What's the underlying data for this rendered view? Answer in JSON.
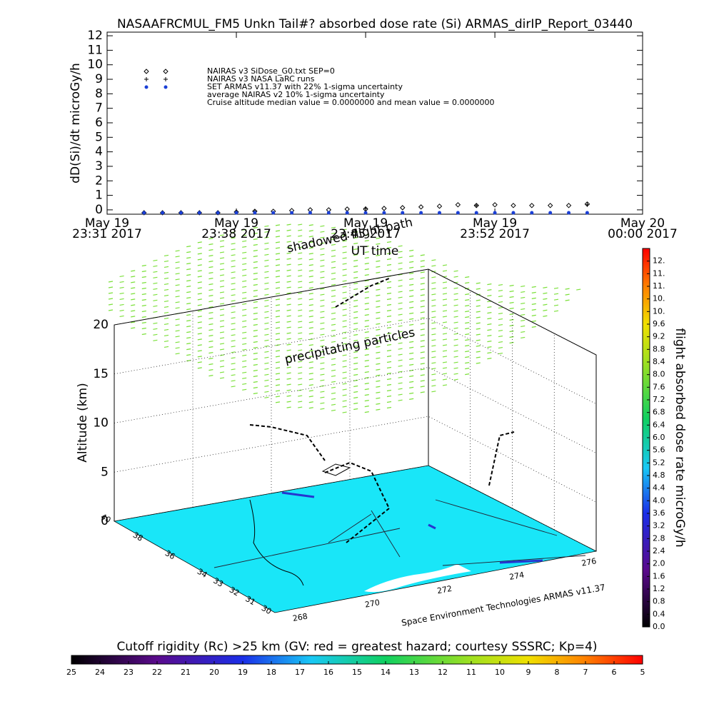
{
  "chart_data": [
    {
      "type": "timeseries",
      "title": "NASAAFRCMUL_FM5 Unkn Tail#? absorbed dose rate (Si) ARMAS_dirIP_Report_03440",
      "ylabel": "dD(Si)/dt microGy/h",
      "xlabel": "UT time",
      "xlim": [
        "2017-05-19 23:31",
        "2017-05-20 00:00"
      ],
      "xticks": [
        {
          "value": "2017-05-19 23:31",
          "label": [
            "May 19",
            "23:31 2017"
          ]
        },
        {
          "value": "2017-05-19 23:38",
          "label": [
            "May 19",
            "23:38 2017"
          ]
        },
        {
          "value": "2017-05-19 23:45",
          "label": [
            "May 19",
            "23:45 2017"
          ]
        },
        {
          "value": "2017-05-19 23:52",
          "label": [
            "May 19",
            "23:52 2017"
          ]
        },
        {
          "value": "2017-05-20 00:00",
          "label": [
            "May 20",
            "00:00 2017"
          ]
        }
      ],
      "ylim": [
        -0.3,
        12.25
      ],
      "yticks": [
        0,
        1,
        2,
        3,
        4,
        5,
        6,
        7,
        8,
        9,
        10,
        11,
        12
      ],
      "series": [
        {
          "name": "NAIRAS v3 SiDose_G0.txt SEP=0",
          "color": "#000000",
          "marker": "diamond",
          "x": [
            "2017-05-19 23:33",
            "2017-05-19 23:34",
            "2017-05-19 23:35",
            "2017-05-19 23:36",
            "2017-05-19 23:37",
            "2017-05-19 23:38",
            "2017-05-19 23:39",
            "2017-05-19 23:40",
            "2017-05-19 23:41",
            "2017-05-19 23:42",
            "2017-05-19 23:43",
            "2017-05-19 23:44",
            "2017-05-19 23:45",
            "2017-05-19 23:46",
            "2017-05-19 23:47",
            "2017-05-19 23:48",
            "2017-05-19 23:49",
            "2017-05-19 23:50",
            "2017-05-19 23:51",
            "2017-05-19 23:52",
            "2017-05-19 23:53",
            "2017-05-19 23:54",
            "2017-05-19 23:55",
            "2017-05-19 23:56",
            "2017-05-19 23:57"
          ],
          "values": [
            -0.2,
            -0.2,
            -0.2,
            -0.2,
            -0.2,
            -0.15,
            -0.1,
            -0.1,
            -0.05,
            0.0,
            0.0,
            0.05,
            0.05,
            0.1,
            0.15,
            0.2,
            0.25,
            0.35,
            0.3,
            0.35,
            0.3,
            0.3,
            0.3,
            0.3,
            0.4
          ]
        },
        {
          "name": "NAIRAS v3 NASA LaRC runs",
          "color": "#000000",
          "marker": "plus",
          "x": [
            "2017-05-19 23:39",
            "2017-05-19 23:45",
            "2017-05-19 23:51",
            "2017-05-19 23:57"
          ],
          "values": [
            -0.1,
            0.1,
            0.3,
            0.35
          ]
        },
        {
          "name": "SET ARMAS v11.37 with 22% 1-sigma uncertainty",
          "color": "#1a3fd6",
          "marker": "dot",
          "x": [
            "2017-05-19 23:33",
            "2017-05-19 23:34",
            "2017-05-19 23:35",
            "2017-05-19 23:36",
            "2017-05-19 23:37",
            "2017-05-19 23:38",
            "2017-05-19 23:39",
            "2017-05-19 23:40",
            "2017-05-19 23:41",
            "2017-05-19 23:42",
            "2017-05-19 23:43",
            "2017-05-19 23:44",
            "2017-05-19 23:45",
            "2017-05-19 23:46",
            "2017-05-19 23:47",
            "2017-05-19 23:48",
            "2017-05-19 23:49",
            "2017-05-19 23:50",
            "2017-05-19 23:51",
            "2017-05-19 23:52",
            "2017-05-19 23:53",
            "2017-05-19 23:54",
            "2017-05-19 23:55",
            "2017-05-19 23:56",
            "2017-05-19 23:57"
          ],
          "values": [
            -0.2,
            -0.2,
            -0.2,
            -0.2,
            -0.2,
            -0.2,
            -0.2,
            -0.2,
            -0.2,
            -0.2,
            -0.2,
            -0.2,
            -0.2,
            -0.2,
            -0.2,
            -0.2,
            -0.2,
            -0.2,
            -0.2,
            -0.2,
            -0.2,
            -0.2,
            -0.2,
            -0.2,
            -0.2
          ]
        }
      ],
      "legend_notes": [
        "average NAIRAS v2 10% 1-sigma uncertainty",
        "Cruise altitude median value = 0.0000000 and mean value = 0.0000000"
      ]
    },
    {
      "type": "surface3d",
      "ylabel": "Altitude (km)",
      "ylim": [
        0,
        20
      ],
      "yticks": [
        0,
        5,
        10,
        15,
        20
      ],
      "latlim": [
        30,
        40
      ],
      "lat_ticks": [
        40,
        38,
        36,
        34,
        33,
        32,
        31,
        30
      ],
      "lonlim": [
        267.3,
        276.2
      ],
      "lon_ticks": [
        268,
        270,
        272,
        274,
        276
      ],
      "annotations": [
        "shadowed flight path",
        "precipitating particles",
        "Space Environment Technologies ARMAS v11.37"
      ]
    },
    {
      "type": "colorbar",
      "orientation": "vertical",
      "title": "flight absorbed dose rate microGy/h",
      "ylim": [
        0,
        12
      ],
      "yticks": [
        {
          "value": 0.0,
          "label": "0.0"
        },
        0.4,
        0.8,
        1.2,
        1.6,
        {
          "value": 2.0,
          "label": "2.0"
        },
        2.4,
        2.8,
        3.2,
        3.6,
        {
          "value": 4.0,
          "label": "4.0"
        },
        4.4,
        4.8,
        5.2,
        5.6,
        {
          "value": 6.0,
          "label": "6.0"
        },
        6.4,
        6.8,
        7.2,
        7.6,
        {
          "value": 8.0,
          "label": "8.0"
        },
        8.4,
        8.8,
        9.2,
        9.6,
        {
          "value": 10.0,
          "label": "10."
        },
        {
          "value": 10.4,
          "label": "10."
        },
        {
          "value": 10.8,
          "label": "11."
        },
        {
          "value": 11.2,
          "label": "11."
        },
        {
          "value": 11.6,
          "label": "12."
        }
      ]
    },
    {
      "type": "colorbar",
      "orientation": "horizontal",
      "title": "Cutoff rigidity (Rc) >25 km (GV: red = greatest hazard; courtesy SSSRC; Kp=4)",
      "xlim": [
        25,
        5
      ],
      "xticks": [
        25,
        24,
        23,
        22,
        21,
        20,
        19,
        18,
        17,
        16,
        15,
        14,
        13,
        12,
        11,
        10,
        9,
        8,
        7,
        6,
        5
      ]
    }
  ]
}
